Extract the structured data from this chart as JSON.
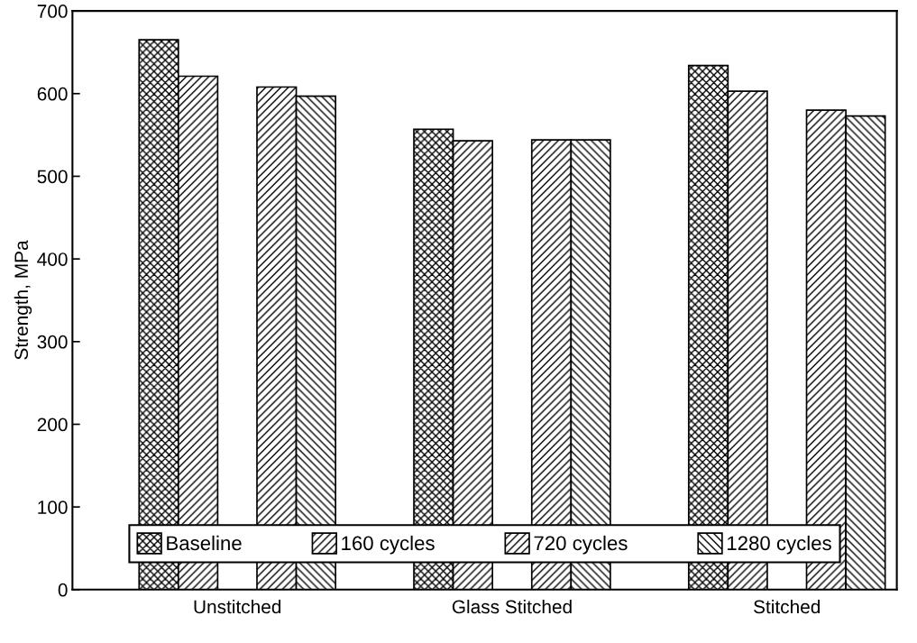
{
  "chart_data": {
    "type": "bar",
    "ylabel": "Strength, MPa",
    "categories": [
      "Unstitched",
      "Glass Stitched",
      "Stitched"
    ],
    "series": [
      {
        "name": "Baseline",
        "color": "#000000",
        "values": [
          665,
          557,
          634
        ]
      },
      {
        "name": "160 cycles",
        "color": "#000000",
        "values": [
          621,
          543,
          603
        ]
      },
      {
        "name": "720 cycles",
        "color": "#000000",
        "values": [
          608,
          544,
          580
        ]
      },
      {
        "name": "1280 cycles",
        "color": "#000000",
        "values": [
          597,
          544,
          573
        ]
      }
    ],
    "ylim": [
      0,
      700
    ],
    "yticks": [
      0,
      100,
      200,
      300,
      400,
      500,
      600,
      700
    ],
    "grid": false,
    "legend": "bottom"
  }
}
